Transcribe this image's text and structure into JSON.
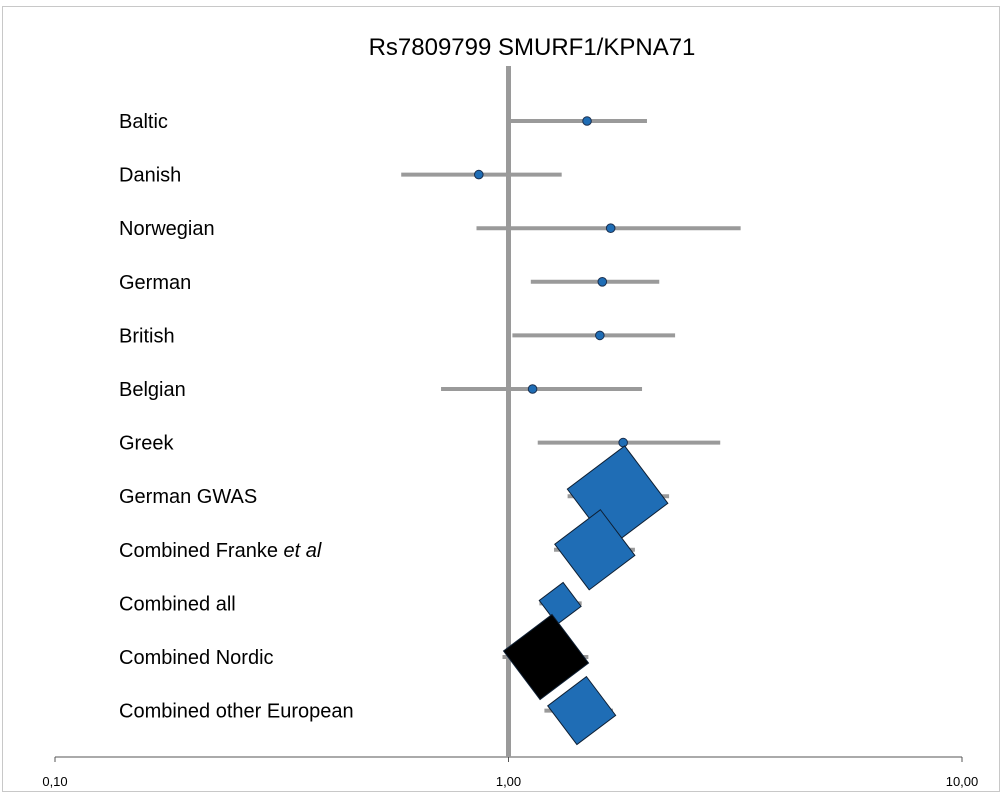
{
  "chart_data": {
    "type": "forest",
    "title": "Rs7809799 SMURF1/KPNA71",
    "x_scale": "log",
    "xlim": [
      0.1,
      10
    ],
    "x_ticks": [
      {
        "value": 0.1,
        "label": "0,10"
      },
      {
        "value": 1,
        "label": "1,00"
      },
      {
        "value": 10,
        "label": "10,00"
      }
    ],
    "reference_line": 1,
    "rows": [
      {
        "label": "Baltic",
        "or": 1.49,
        "lo": 1.01,
        "hi": 2.02,
        "marker": "circle"
      },
      {
        "label": "Danish",
        "or": 0.86,
        "lo": 0.58,
        "hi": 1.31,
        "marker": "circle"
      },
      {
        "label": "Norwegian",
        "or": 1.68,
        "lo": 0.85,
        "hi": 3.25,
        "marker": "circle"
      },
      {
        "label": "German",
        "or": 1.61,
        "lo": 1.12,
        "hi": 2.15,
        "marker": "circle"
      },
      {
        "label": "British",
        "or": 1.59,
        "lo": 1.02,
        "hi": 2.33,
        "marker": "circle"
      },
      {
        "label": "Belgian",
        "or": 1.13,
        "lo": 0.71,
        "hi": 1.97,
        "marker": "circle"
      },
      {
        "label": "Greek",
        "or": 1.79,
        "lo": 1.16,
        "hi": 2.93,
        "marker": "circle"
      },
      {
        "label": "German GWAS",
        "or": 1.74,
        "lo": 1.35,
        "hi": 2.26,
        "marker": "diamond",
        "color": "#1f6db5"
      },
      {
        "label": "Combined Franke ",
        "label_italic": "et al",
        "or": 1.55,
        "lo": 1.26,
        "hi": 1.9,
        "marker": "diamond",
        "color": "#1f6db5"
      },
      {
        "label": "Combined all",
        "or": 1.3,
        "lo": 1.17,
        "hi": 1.45,
        "marker": "diamond",
        "color": "#1f6db5"
      },
      {
        "label": "Combined Nordic",
        "or": 1.21,
        "lo": 0.97,
        "hi": 1.5,
        "marker": "diamond",
        "color": "#000000"
      },
      {
        "label": "Combined other European",
        "or": 1.45,
        "lo": 1.2,
        "hi": 1.7,
        "marker": "diamond",
        "color": "#1f6db5"
      }
    ]
  }
}
